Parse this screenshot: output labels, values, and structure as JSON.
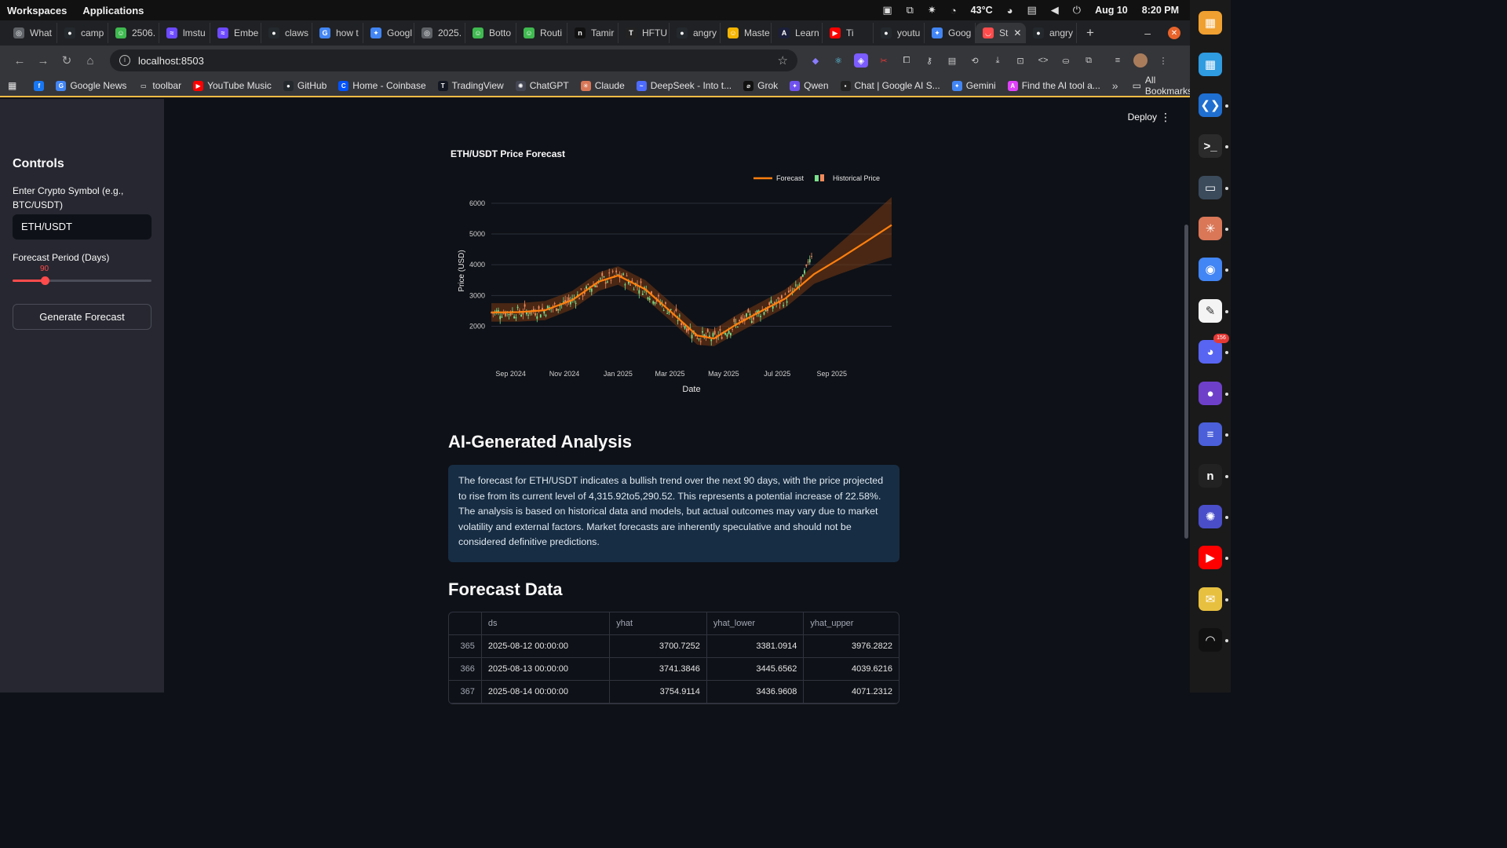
{
  "os": {
    "workspaces": "Workspaces",
    "applications": "Applications",
    "temperature": "43°C",
    "date": "Aug 10",
    "time": "8:20 PM"
  },
  "tabs": [
    {
      "label": "What",
      "color": "#5f6368",
      "glyph": "◎"
    },
    {
      "label": "camp",
      "color": "#24292e",
      "glyph": "●"
    },
    {
      "label": "2506.",
      "color": "#3fb950",
      "glyph": "☺"
    },
    {
      "label": "lmstu",
      "color": "#6d4aff",
      "glyph": "≈"
    },
    {
      "label": "Embe",
      "color": "#6d4aff",
      "glyph": "≈"
    },
    {
      "label": "claws",
      "color": "#24292e",
      "glyph": "●"
    },
    {
      "label": "how t",
      "color": "#4285f4",
      "glyph": "G"
    },
    {
      "label": "Googl",
      "color": "#4285f4",
      "glyph": "✦"
    },
    {
      "label": "2025.",
      "color": "#5f6368",
      "glyph": "◎"
    },
    {
      "label": "Botto",
      "color": "#3fb950",
      "glyph": "☺"
    },
    {
      "label": "Routi",
      "color": "#3fb950",
      "glyph": "☺"
    },
    {
      "label": "Tamir",
      "color": "#111111",
      "glyph": "n"
    },
    {
      "label": "HFTU",
      "color": "#222222",
      "glyph": "T"
    },
    {
      "label": "angry",
      "color": "#24292e",
      "glyph": "●"
    },
    {
      "label": "Maste",
      "color": "#f4b400",
      "glyph": "☺"
    },
    {
      "label": "Learn",
      "color": "#1b1f3a",
      "glyph": "A"
    },
    {
      "label": "Ti",
      "color": "#ff0000",
      "glyph": "▶"
    },
    {
      "label": "youtu",
      "color": "#24292e",
      "glyph": "●"
    },
    {
      "label": "Goog",
      "color": "#4285f4",
      "glyph": "✦"
    },
    {
      "label": "St",
      "color": "#ff4b4b",
      "glyph": "◡",
      "active": true
    },
    {
      "label": "angry",
      "color": "#24292e",
      "glyph": "●"
    }
  ],
  "address": {
    "url": "localhost:8503"
  },
  "bookmarks": [
    {
      "label": "",
      "color": "#1877f2",
      "glyph": "f"
    },
    {
      "label": "Google News",
      "color": "#4285f4",
      "glyph": "G"
    },
    {
      "label": "toolbar",
      "color": "#35363a",
      "glyph": "▭"
    },
    {
      "label": "YouTube Music",
      "color": "#ff0000",
      "glyph": "▶"
    },
    {
      "label": "GitHub",
      "color": "#24292e",
      "glyph": "●"
    },
    {
      "label": "Home - Coinbase",
      "color": "#0052ff",
      "glyph": "C"
    },
    {
      "label": "TradingView",
      "color": "#131722",
      "glyph": "T"
    },
    {
      "label": "ChatGPT",
      "color": "#444654",
      "glyph": "✺"
    },
    {
      "label": "Claude",
      "color": "#d97757",
      "glyph": "✳"
    },
    {
      "label": "DeepSeek - Into t...",
      "color": "#4d6bfe",
      "glyph": "~"
    },
    {
      "label": "Grok",
      "color": "#111111",
      "glyph": "⌀"
    },
    {
      "label": "Qwen",
      "color": "#6f52ed",
      "glyph": "✦"
    },
    {
      "label": "Chat | Google AI S...",
      "color": "#222222",
      "glyph": "▪"
    },
    {
      "label": "Gemini",
      "color": "#4285f4",
      "glyph": "✦"
    },
    {
      "label": "Find the AI tool a...",
      "color": "#e040fb",
      "glyph": "A"
    }
  ],
  "all_bookmarks": "All Bookmarks",
  "sidebar": {
    "title": "Controls",
    "symbol_label": "Enter Crypto Symbol (e.g., BTC/USDT)",
    "symbol_value": "ETH/USDT",
    "period_label": "Forecast Period (Days)",
    "period_value": "90",
    "period_fraction": 0.23,
    "button": "Generate Forecast"
  },
  "header": {
    "deploy": "Deploy"
  },
  "chart_data": {
    "type": "line",
    "title": "ETH/USDT Price Forecast",
    "xlabel": "Date",
    "ylabel": "Price (USD)",
    "legend": [
      "Forecast",
      "Historical Price"
    ],
    "legend_position": "top-right",
    "x_ticks": [
      "Sep 2024",
      "Nov 2024",
      "Jan 2025",
      "Mar 2025",
      "May 2025",
      "Jul 2025",
      "Sep 2025"
    ],
    "y_ticks": [
      2000,
      3000,
      4000,
      5000,
      6000
    ],
    "ylim": [
      1400,
      6200
    ],
    "forecast": {
      "x": [
        "2024-08-10",
        "2024-09-10",
        "2024-10-10",
        "2024-11-10",
        "2024-12-10",
        "2025-01-01",
        "2025-02-01",
        "2025-03-01",
        "2025-04-01",
        "2025-04-20",
        "2025-05-15",
        "2025-06-10",
        "2025-07-10",
        "2025-08-12",
        "2025-09-10",
        "2025-10-10",
        "2025-11-08"
      ],
      "y": [
        2450,
        2460,
        2520,
        2850,
        3450,
        3650,
        3200,
        2500,
        1700,
        1600,
        2050,
        2450,
        2900,
        3700,
        4200,
        4750,
        5290
      ],
      "lower": [
        2150,
        2150,
        2200,
        2550,
        3150,
        3350,
        2900,
        2200,
        1400,
        1350,
        1750,
        2150,
        2600,
        3380,
        3700,
        4000,
        4250
      ],
      "upper": [
        2750,
        2750,
        2820,
        3150,
        3750,
        3950,
        3500,
        2800,
        2000,
        1900,
        2350,
        2750,
        3200,
        3980,
        4700,
        5450,
        6200
      ]
    },
    "historical_range": {
      "start": "2024-08-10",
      "end": "2025-08-10",
      "last_close": 4315.92
    }
  },
  "analysis": {
    "heading": "AI-Generated Analysis",
    "text": "The forecast for ETH/USDT indicates a bullish trend over the next 90 days, with the price projected to rise from its current level of 4,315.92to5,290.52. This represents a potential increase of 22.58%. The analysis is based on historical data and models, but actual outcomes may vary due to market volatility and external factors. Market forecasts are inherently speculative and should not be considered definitive predictions."
  },
  "forecast_table": {
    "heading": "Forecast Data",
    "columns": [
      "",
      "ds",
      "yhat",
      "yhat_lower",
      "yhat_upper"
    ],
    "rows": [
      [
        "365",
        "2025-08-12 00:00:00",
        "3700.7252",
        "3381.0914",
        "3976.2822"
      ],
      [
        "366",
        "2025-08-13 00:00:00",
        "3741.3846",
        "3445.6562",
        "4039.6216"
      ],
      [
        "367",
        "2025-08-14 00:00:00",
        "3754.9114",
        "3436.9608",
        "4071.2312"
      ]
    ]
  },
  "dock": [
    {
      "name": "tilix-icon",
      "color": "#f0a030",
      "glyph": "▦"
    },
    {
      "name": "apps-grid-icon",
      "color": "#2f9be0",
      "glyph": "▦"
    },
    {
      "name": "vscode-icon",
      "color": "#1f6fd1",
      "glyph": "❮❯"
    },
    {
      "name": "terminal-icon",
      "color": "#2b2b2b",
      "glyph": ">_"
    },
    {
      "name": "files-icon",
      "color": "#3b4b5c",
      "glyph": "▭"
    },
    {
      "name": "claude-icon",
      "color": "#d97757",
      "glyph": "✳"
    },
    {
      "name": "chrome-icon",
      "color": "#4285f4",
      "glyph": "◉"
    },
    {
      "name": "text-editor-icon",
      "color": "#f4f4f4",
      "glyph": "✎"
    },
    {
      "name": "discord-icon",
      "color": "#5865f2",
      "glyph": "◕",
      "badge": "156"
    },
    {
      "name": "github-desktop-icon",
      "color": "#6e40c9",
      "glyph": "●"
    },
    {
      "name": "notes-icon",
      "color": "#4a5fd9",
      "glyph": "≡"
    },
    {
      "name": "app-n-icon",
      "color": "#222222",
      "glyph": "n"
    },
    {
      "name": "app-settings-icon",
      "color": "#4a4ec9",
      "glyph": "✺"
    },
    {
      "name": "youtube-music-icon",
      "color": "#ff0000",
      "glyph": "▶"
    },
    {
      "name": "mail-icon",
      "color": "#e8c040",
      "glyph": "✉"
    },
    {
      "name": "podcast-icon",
      "color": "#111111",
      "glyph": "◠"
    }
  ]
}
